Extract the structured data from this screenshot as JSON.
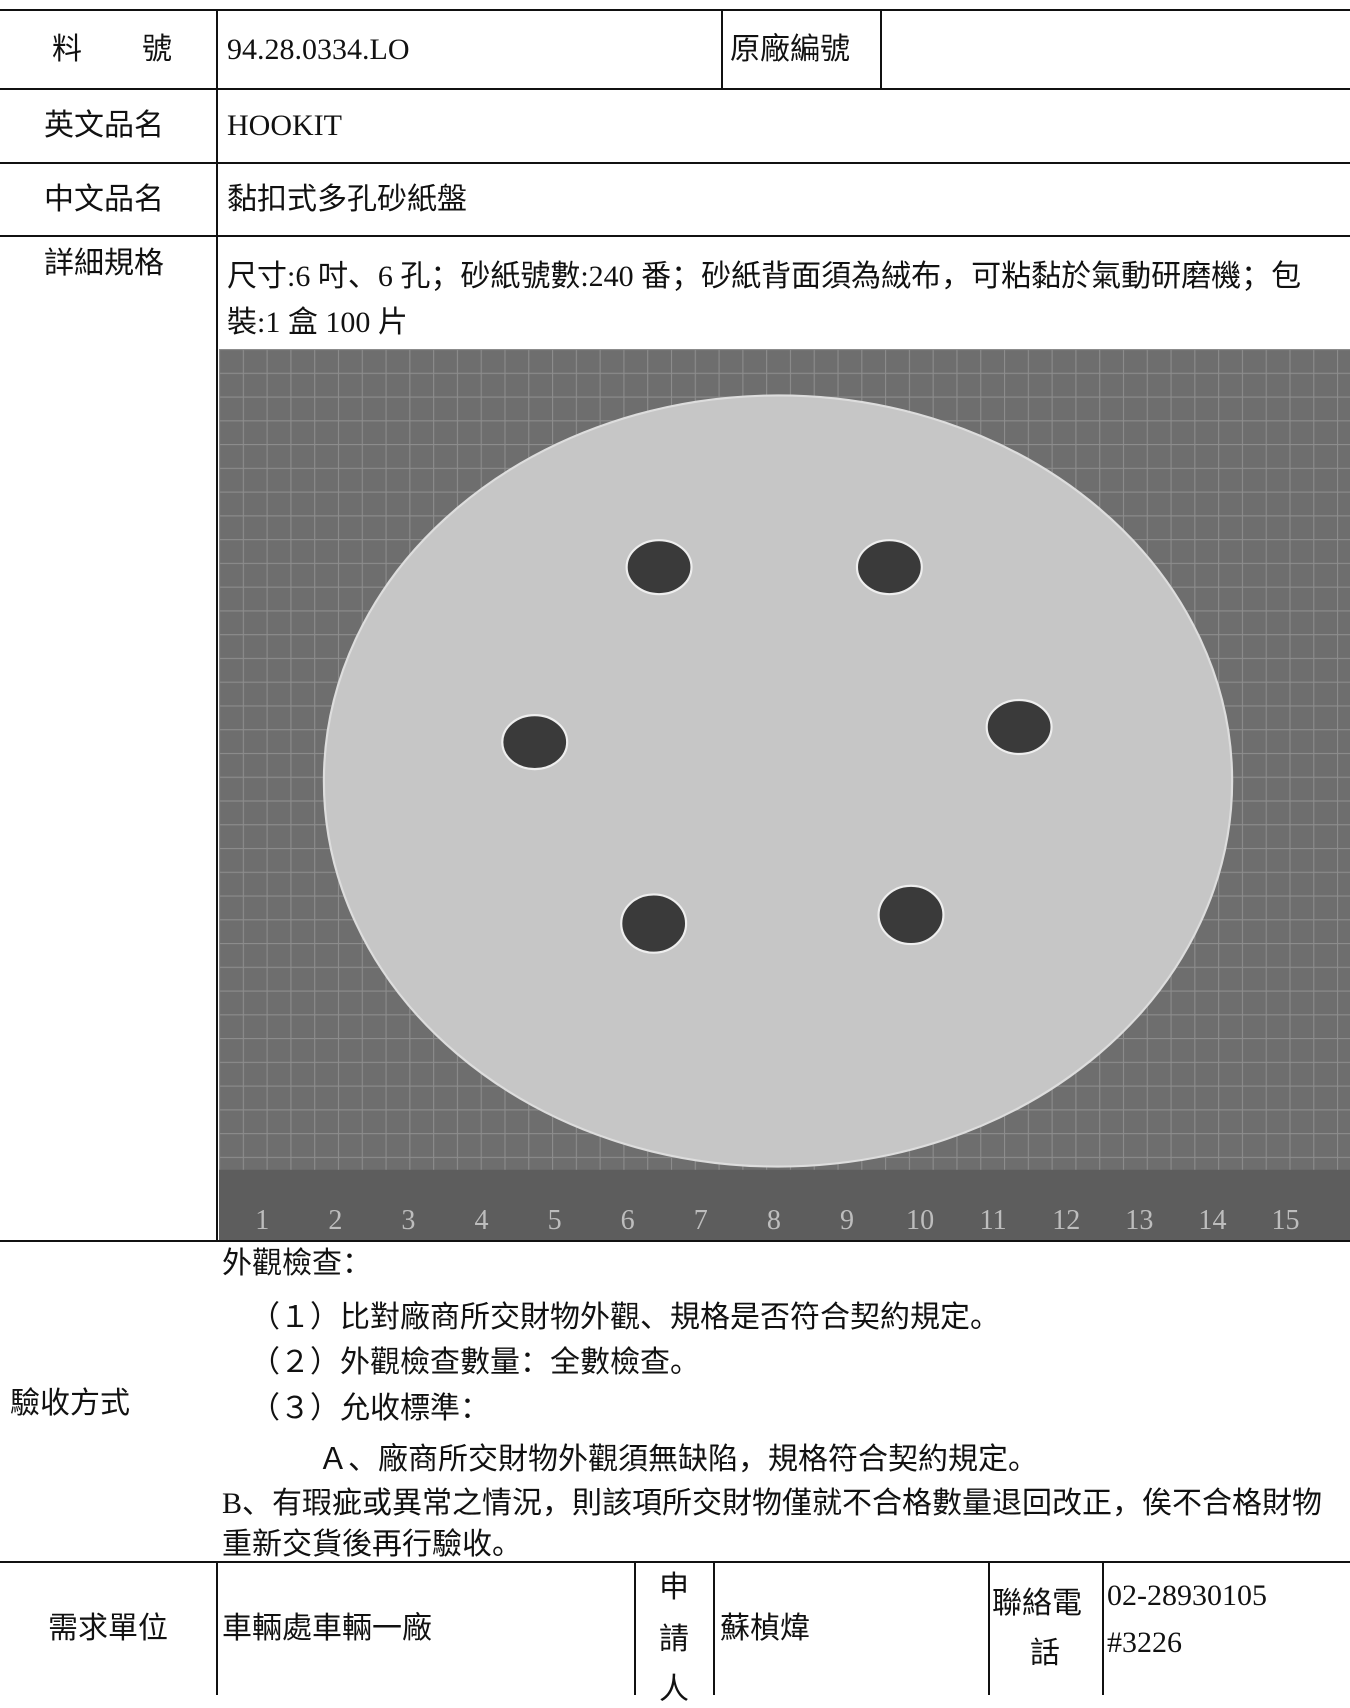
{
  "part_no": {
    "label": "料　　號",
    "value": "94.28.0334.LO"
  },
  "original_no": {
    "label": "原廠編號"
  },
  "english_name": {
    "label": "英文品名",
    "value": "HOOKIT"
  },
  "chinese_name": {
    "label": "中文品名",
    "value": "黏扣式多孔砂紙盤"
  },
  "spec": {
    "label": "詳細規格",
    "text": "尺寸:6 吋、6 孔；砂紙號數:240 番；砂紙背面須為絨布，可粘黏於氣動研磨機；包裝:1 盒 100 片"
  },
  "photo": {
    "ruler": [
      "1",
      "2",
      "3",
      "4",
      "5",
      "6",
      "7",
      "8",
      "9",
      "10",
      "11",
      "12",
      "13",
      "14",
      "15"
    ]
  },
  "acceptance": {
    "label": "驗收方式",
    "heading": "外觀檢查：",
    "items": [
      "（１）比對廠商所交財物外觀、規格是否符合契約規定。",
      "（２）外觀檢查數量：全數檢查。",
      "（３）允收標準："
    ],
    "sub_item": "Ａ、廠商所交財物外觀須無缺陷，規格符合契約規定。",
    "note": "B、有瑕疵或異常之情況，則該項所交財物僅就不合格數量退回改正，俟不合格財物重新交貨後再行驗收。"
  },
  "footer": {
    "unit_label": "需求單位",
    "unit": "車輛處車輛一廠",
    "applicant_label": [
      "申",
      "請",
      "人"
    ],
    "applicant": "蘇楨煒",
    "phone_label": [
      "聯絡電",
      "話"
    ],
    "phone": [
      "02-28930105",
      "#3226"
    ]
  }
}
